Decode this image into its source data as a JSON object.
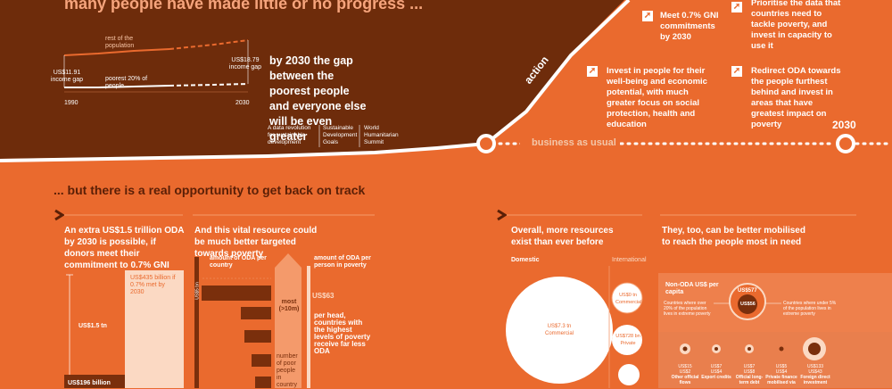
{
  "top": {
    "headline": "many people have made little or no progress ...",
    "chart": {
      "rest_label": "rest of the population",
      "poorest_label": "poorest 20% of people",
      "start_gap": "US$11.91 income gap",
      "end_gap": "US$18.79 income gap",
      "year_start": "1990",
      "year_end": "2030"
    },
    "gap_text": "by 2030 the gap between the poorest people and everyone else will be even greater",
    "sources": [
      "A data revolution for sustainable development",
      "Sustainable Development Goals",
      "World Humanitarian Summit"
    ]
  },
  "path": {
    "action": "action",
    "business": "business as usual",
    "year": "2030"
  },
  "actions": [
    "Meet 0.7% GNI commitments by 2030",
    "Prioritise the data that countries need to tackle poverty, and invest in capacity to use it",
    "Invest in people for their well-being and economic potential, with much greater focus on social protection, health and education",
    "Redirect ODA towards the people furthest behind and invest in areas that have greatest impact on poverty"
  ],
  "section2": {
    "heading": "... but there is a real opportunity to get back on track",
    "col1": "An extra US$1.5 trillion ODA by 2030 is possible, if donors meet their commitment to 0.7% GNI",
    "col2": "And this vital resource could be much better targeted towards poverty",
    "col3": "Overall, more resources exist than ever before",
    "col4": "They, too, can be better mobilised to reach the people most in need",
    "bar435": "US$435 billion if 0.7% met by 2030",
    "bar15": "US$1.5 tn",
    "bar196": "US$196 billion",
    "legend1": "amount of ODA per country",
    "legend2": "amount of ODA per person in poverty",
    "axis": "US$5 bn",
    "most": "most (>10m)",
    "poor_label": "number of poor people in country",
    "us63": "US$63",
    "us63_text": "per head, countries with the highest levels of poverty receive far less ODA",
    "domestic": "Domestic",
    "international": "International",
    "dom_circle": "US$7.3 tn Commercial",
    "intl_commercial": "US$0 tn Commercial",
    "intl_private": "US$728 bn Private",
    "nonoda_title": "Non-ODA US$ per capita",
    "nonoda_left": "Countries where over 20% of the population lives in extreme poverty",
    "nonoda_right": "Countries where under 5% of the population lives in extreme poverty",
    "us577": "US$577",
    "us56": "US$56",
    "flows": [
      {
        "top": "US$15",
        "bot": "US$2",
        "name": "Other official flows"
      },
      {
        "top": "US$7",
        "bot": "US$4",
        "name": "Export credits"
      },
      {
        "top": "US$7",
        "bot": "US$8",
        "name": "Official long-term debt"
      },
      {
        "top": "US$5",
        "bot": "US$4",
        "name": "Private finance mobilised via"
      },
      {
        "top": "US$133",
        "bot": "US$43",
        "name": "Foreign direct investment"
      }
    ]
  }
}
